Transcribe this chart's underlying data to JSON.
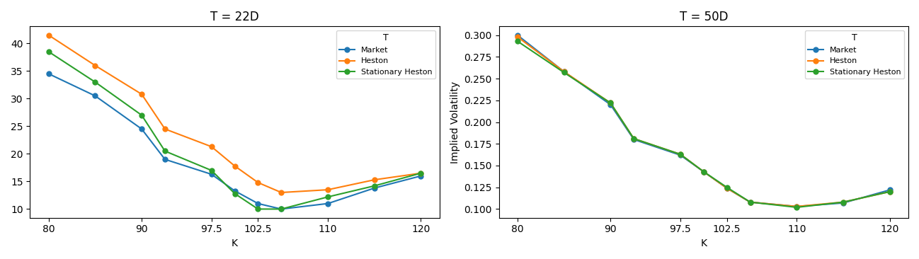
{
  "left": {
    "title": "T = 22D",
    "xlabel": "K",
    "ylabel": "",
    "x": [
      80,
      85,
      90,
      92.5,
      97.5,
      100,
      102.5,
      105,
      110,
      115,
      120
    ],
    "market": [
      34.5,
      30.5,
      24.5,
      19.0,
      16.3,
      13.3,
      11.0,
      10.0,
      11.0,
      13.8,
      16.0
    ],
    "heston": [
      41.5,
      36.0,
      30.8,
      24.5,
      21.3,
      17.8,
      14.8,
      13.0,
      13.5,
      15.3,
      16.5
    ],
    "stat_heston": [
      38.5,
      33.0,
      27.0,
      20.5,
      17.0,
      12.8,
      10.0,
      10.0,
      12.2,
      14.2,
      16.5
    ],
    "xticks": [
      80,
      90,
      97.5,
      102.5,
      110,
      120
    ],
    "xticklabels": [
      "80",
      "90",
      "97.5",
      "102.5",
      "110",
      "120"
    ],
    "xlim": [
      78,
      122
    ]
  },
  "right": {
    "title": "T = 50D",
    "xlabel": "K",
    "ylabel": "Implied Volatility",
    "x": [
      80,
      85,
      90,
      92.5,
      97.5,
      100,
      102.5,
      105,
      110,
      115,
      120
    ],
    "market": [
      0.3,
      0.258,
      0.22,
      0.18,
      0.162,
      0.143,
      0.124,
      0.108,
      0.103,
      0.107,
      0.122
    ],
    "heston": [
      0.298,
      0.258,
      0.222,
      0.181,
      0.163,
      0.143,
      0.124,
      0.108,
      0.103,
      0.108,
      0.12
    ],
    "stat_heston": [
      0.293,
      0.257,
      0.222,
      0.181,
      0.163,
      0.143,
      0.125,
      0.108,
      0.102,
      0.108,
      0.12
    ],
    "xticks": [
      80,
      90,
      97.5,
      102.5,
      110,
      120
    ],
    "xticklabels": [
      "80",
      "90",
      "97.5",
      "102.5",
      "110",
      "120"
    ],
    "xlim": [
      78,
      122
    ],
    "ylim": [
      0.09,
      0.31
    ]
  },
  "legend_title": "T",
  "legend_labels": [
    "Market",
    "Heston",
    "Stationary Heston"
  ],
  "colors": [
    "#1f77b4",
    "#ff7f0e",
    "#2ca02c"
  ],
  "marker": "o",
  "markersize": 5,
  "linewidth": 1.5
}
